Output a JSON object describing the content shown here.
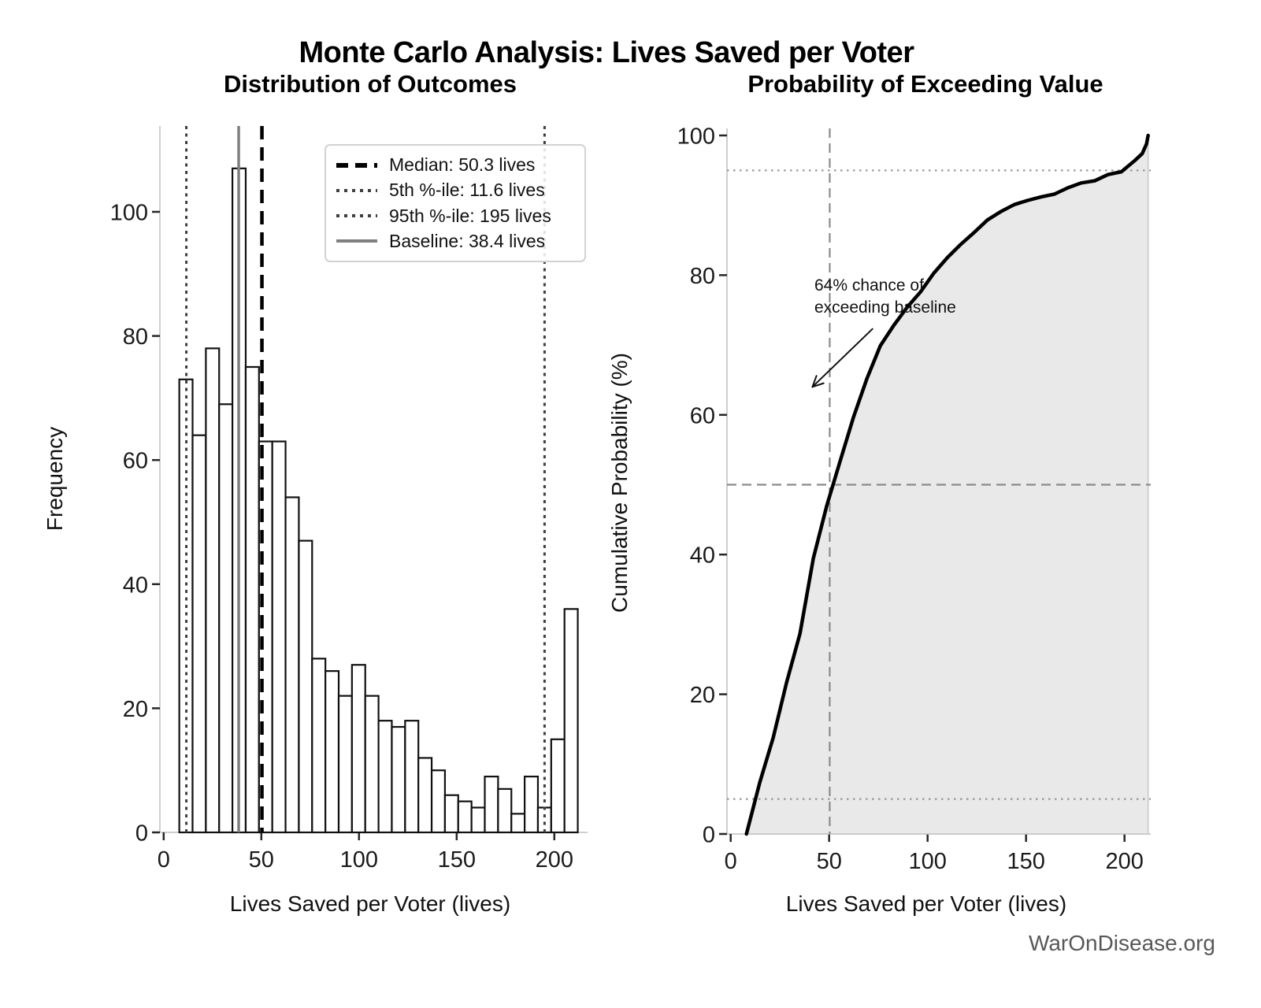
{
  "figure": {
    "title": "Monte Carlo Analysis: Lives Saved per Voter",
    "watermark": "WarOnDisease.org",
    "background_color": "#ffffff",
    "accent_colors": {
      "bar_fill": "#ffffff",
      "bar_edge": "#111111",
      "median_line": "#000000",
      "percentile_line": "#3f3f3f",
      "baseline_line": "#7f7f7f",
      "cdf_line": "#000000",
      "cdf_fill": "#e9e9e9",
      "crosshair": "#8a8a8a",
      "spine": "#cfcfcf"
    }
  },
  "stats": {
    "median_lives": 50.3,
    "percentile_5_lives": 11.6,
    "percentile_95_lives": 195,
    "baseline_lives": 38.4,
    "exceed_baseline_probability_pct": 64
  },
  "chart_data": [
    {
      "type": "bar",
      "subtype": "histogram",
      "panel": "left",
      "title": "Distribution of Outcomes",
      "xlabel": "Lives Saved per Voter (lives)",
      "ylabel": "Frequency",
      "x_ticks": [
        0,
        50,
        100,
        150,
        200
      ],
      "y_ticks": [
        0,
        20,
        40,
        60,
        80,
        100
      ],
      "xlim": [
        -2,
        217
      ],
      "ylim": [
        0,
        113.8
      ],
      "grid": false,
      "bin_start": 8.0,
      "bin_width": 6.8,
      "counts": [
        73,
        64,
        78,
        69,
        107,
        75,
        63,
        63,
        54,
        47,
        28,
        26,
        22,
        27,
        22,
        18,
        17,
        18,
        12,
        10,
        6,
        5,
        4,
        9,
        7,
        3,
        9,
        4,
        15,
        36
      ],
      "reference_lines": [
        {
          "label": "Median: 50.3 lives",
          "value": 50.3,
          "style": "dashed",
          "color": "#000000"
        },
        {
          "label": "5th %-ile: 11.6 lives",
          "value": 11.6,
          "style": "dotted",
          "color": "#3f3f3f"
        },
        {
          "label": "95th %-ile: 195 lives",
          "value": 195,
          "style": "dotted",
          "color": "#3f3f3f"
        },
        {
          "label": "Baseline: 38.4 lives",
          "value": 38.4,
          "style": "solid",
          "color": "#7f7f7f"
        }
      ],
      "legend_position": "upper right"
    },
    {
      "type": "line",
      "subtype": "empirical-cdf",
      "panel": "right",
      "title": "Probability of Exceeding Value",
      "xlabel": "Lives Saved per Voter (lives)",
      "ylabel": "Cumulative Probability (%)",
      "x_ticks": [
        0,
        50,
        100,
        150,
        200
      ],
      "y_ticks": [
        0,
        20,
        40,
        60,
        80,
        100
      ],
      "xlim": [
        -2,
        214
      ],
      "ylim": [
        0,
        101
      ],
      "grid": false,
      "x": [
        8,
        14.8,
        21.6,
        28.4,
        35.2,
        42,
        48.8,
        55.6,
        62.4,
        69.2,
        76,
        82.8,
        89.6,
        96.4,
        103.2,
        110,
        116.8,
        123.6,
        130.4,
        137.2,
        144,
        150.8,
        157.6,
        164.4,
        171.2,
        178,
        184.8,
        191.6,
        198.4,
        205.2,
        209,
        211.2,
        212
      ],
      "y": [
        0,
        7.4,
        13.8,
        21.7,
        28.7,
        39.5,
        47,
        53.4,
        59.7,
        65.2,
        69.9,
        72.8,
        75.4,
        77.6,
        80.3,
        82.5,
        84.4,
        86.1,
        87.9,
        89.1,
        90.1,
        90.7,
        91.2,
        91.6,
        92.5,
        93.2,
        93.5,
        94.4,
        94.8,
        96.4,
        97.4,
        98.8,
        100
      ],
      "fill_to_x": 212,
      "reference_lines": [
        {
          "axis": "x",
          "value": 50.3,
          "style": "dashed",
          "color": "#8a8a8a"
        },
        {
          "axis": "y",
          "value": 50,
          "style": "dashed",
          "color": "#8a8a8a"
        },
        {
          "axis": "y",
          "value": 95,
          "style": "dotted",
          "color": "#999999"
        },
        {
          "axis": "y",
          "value": 5,
          "style": "dotted",
          "color": "#999999"
        }
      ],
      "annotation": {
        "text": "64% chance of\nexceeding baseline",
        "text_xy": [
          42.5,
          79.7
        ],
        "arrow_from_xy": [
          72,
          72.3
        ],
        "arrow_tip_xy": [
          41.5,
          64
        ]
      }
    }
  ]
}
